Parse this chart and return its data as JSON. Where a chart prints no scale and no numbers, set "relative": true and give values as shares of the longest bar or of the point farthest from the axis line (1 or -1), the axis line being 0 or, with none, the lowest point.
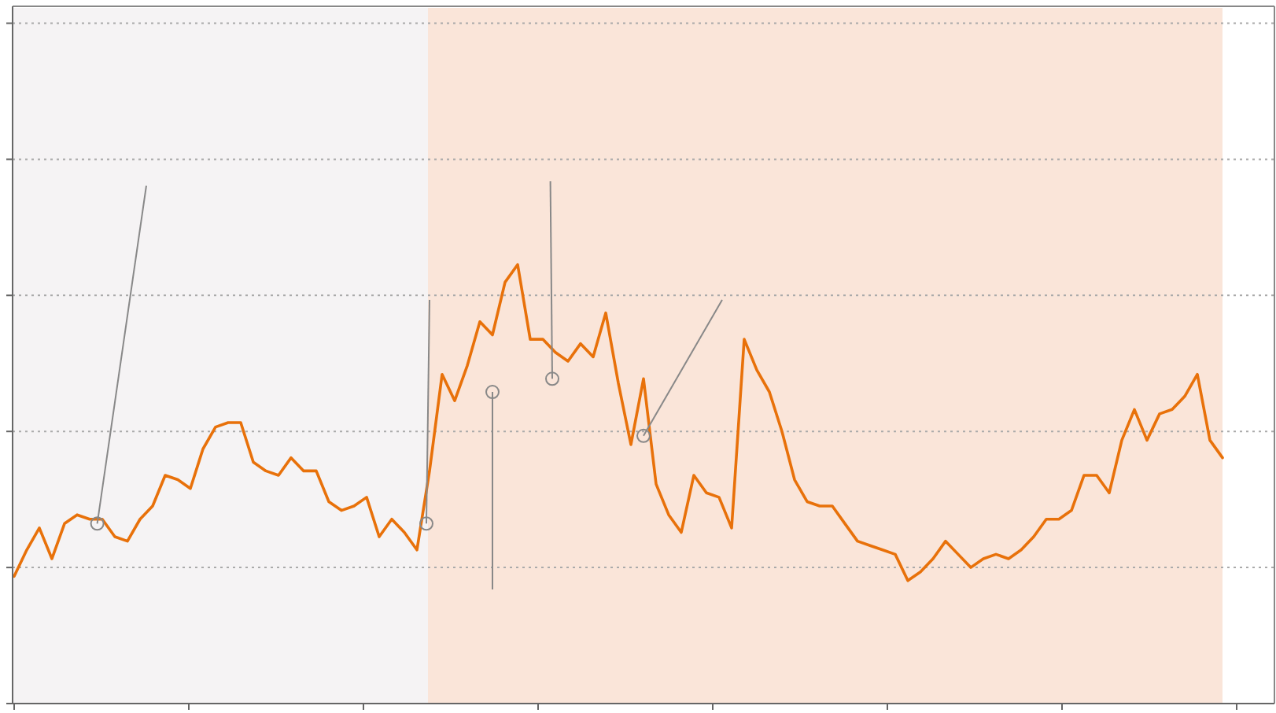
{
  "chart_data": {
    "type": "line",
    "relative": true,
    "categories": [
      null,
      null,
      null,
      null,
      null,
      null,
      null,
      null,
      null,
      null,
      null,
      null,
      null,
      null,
      null,
      null,
      null,
      null,
      null,
      null,
      null,
      null,
      null,
      null,
      null,
      null,
      null,
      null,
      null,
      null,
      null,
      null,
      null,
      null,
      null,
      null,
      null,
      null,
      null,
      null,
      null,
      null,
      null,
      null,
      null,
      null,
      null,
      null,
      null,
      null,
      null,
      null,
      null,
      null,
      null,
      null,
      null,
      null,
      null,
      null,
      null,
      null,
      null,
      null,
      null,
      null,
      null,
      null,
      null,
      null,
      null,
      null,
      null,
      null,
      null,
      null,
      null,
      null,
      null,
      null,
      null,
      null,
      null,
      null,
      null,
      null,
      null,
      null,
      null,
      null,
      null,
      null,
      null,
      null,
      null,
      null,
      null
    ],
    "series": [
      {
        "color": "#e8710a",
        "values": [
          0.29,
          0.35,
          0.4,
          0.33,
          0.41,
          0.43,
          0.42,
          0.42,
          0.38,
          0.37,
          0.42,
          0.45,
          0.52,
          0.51,
          0.49,
          0.58,
          0.63,
          0.64,
          0.64,
          0.55,
          0.53,
          0.52,
          0.56,
          0.53,
          0.53,
          0.46,
          0.44,
          0.45,
          0.47,
          0.38,
          0.42,
          0.39,
          0.35,
          0.53,
          0.75,
          0.69,
          0.77,
          0.87,
          0.84,
          0.96,
          1,
          0.83,
          0.83,
          0.8,
          0.78,
          0.82,
          0.79,
          0.89,
          0.73,
          0.59,
          0.74,
          0.5,
          0.43,
          0.39,
          0.52,
          0.48,
          0.47,
          0.4,
          0.83,
          0.76,
          0.71,
          0.62,
          0.51,
          0.46,
          0.45,
          0.45,
          0.41,
          0.37,
          0.36,
          0.35,
          0.34,
          0.28,
          0.3,
          0.33,
          0.37,
          0.34,
          0.31,
          0.33,
          0.34,
          0.33,
          0.35,
          0.38,
          0.42,
          0.42,
          0.44,
          0.52,
          0.52,
          0.48,
          0.6,
          0.67,
          0.6,
          0.66,
          0.67,
          0.7,
          0.75,
          0.6,
          0.56
        ]
      }
    ],
    "grid": "y",
    "marker": "none",
    "line_style": "solid"
  }
}
